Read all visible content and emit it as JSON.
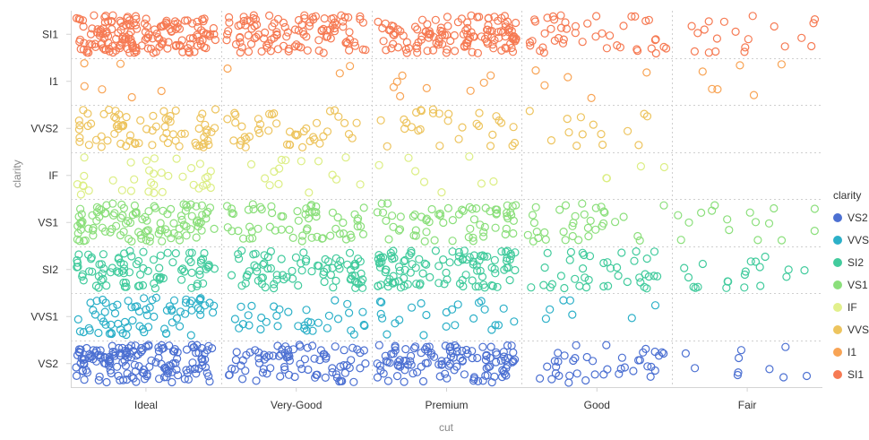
{
  "chart_data": {
    "type": "scatter",
    "subtype": "jittered-strip",
    "xlabel": "cut",
    "ylabel": "clarity",
    "x_categories": [
      "Ideal",
      "Very-Good",
      "Premium",
      "Good",
      "Fair"
    ],
    "y_categories": [
      "SI1",
      "I1",
      "VVS2",
      "IF",
      "VS1",
      "SI2",
      "VVS1",
      "VS2"
    ],
    "grid": true,
    "legend": {
      "title": "clarity",
      "position": "right",
      "items": [
        {
          "label": "VS2",
          "color": "#4c70d2"
        },
        {
          "label": "VVS",
          "color": "#2cb0c8"
        },
        {
          "label": "SI2",
          "color": "#42cb9d"
        },
        {
          "label": "VS1",
          "color": "#8bdf7b"
        },
        {
          "label": "IF",
          "color": "#e2f08c"
        },
        {
          "label": "VVS",
          "color": "#edc45e"
        },
        {
          "label": "I1",
          "color": "#f8a455"
        },
        {
          "label": "SI1",
          "color": "#f67a53"
        }
      ]
    },
    "series_colors": {
      "VS2": "#4c70d2",
      "VVS1": "#2cb0c8",
      "SI2": "#42cb9d",
      "VS1": "#8bdf7b",
      "IF": "#dcee84",
      "VVS2": "#edc45e",
      "I1": "#f8a455",
      "SI1": "#f67a53"
    },
    "approx_point_counts": {
      "SI1": {
        "Ideal": 170,
        "Very-Good": 110,
        "Premium": 130,
        "Good": 45,
        "Fair": 20
      },
      "I1": {
        "Ideal": 6,
        "Very-Good": 3,
        "Premium": 8,
        "Good": 5,
        "Fair": 6
      },
      "VVS2": {
        "Ideal": 75,
        "Very-Good": 45,
        "Premium": 30,
        "Good": 14,
        "Fair": 0
      },
      "IF": {
        "Ideal": 35,
        "Very-Good": 15,
        "Premium": 8,
        "Good": 4,
        "Fair": 0
      },
      "VS1": {
        "Ideal": 110,
        "Very-Good": 65,
        "Premium": 65,
        "Good": 35,
        "Fair": 16
      },
      "SI2": {
        "Ideal": 90,
        "Very-Good": 80,
        "Premium": 110,
        "Good": 40,
        "Fair": 20
      },
      "VVS1": {
        "Ideal": 75,
        "Very-Good": 35,
        "Premium": 25,
        "Good": 7,
        "Fair": 0
      },
      "VS2": {
        "Ideal": 160,
        "Very-Good": 85,
        "Premium": 120,
        "Good": 40,
        "Fair": 10
      }
    }
  }
}
